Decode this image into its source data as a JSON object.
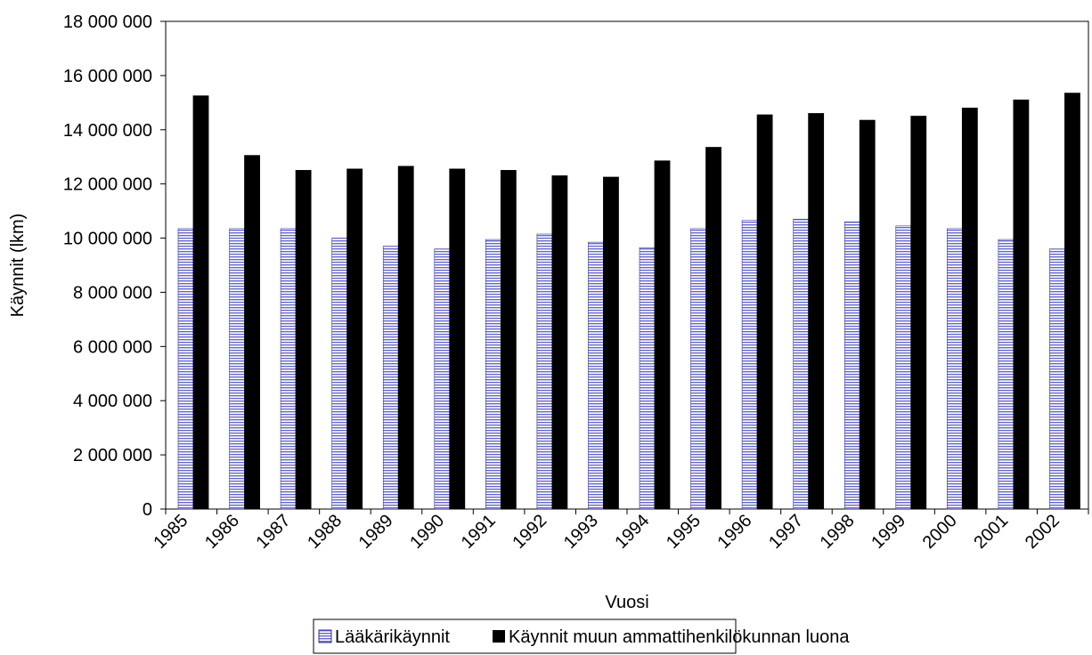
{
  "chart_data": {
    "type": "bar",
    "title": "",
    "xlabel": "Vuosi",
    "ylabel": "Käynnit (lkm)",
    "ylim": [
      0,
      18000000
    ],
    "yticks": [
      0,
      2000000,
      4000000,
      6000000,
      8000000,
      10000000,
      12000000,
      14000000,
      16000000,
      18000000
    ],
    "ytick_labels": [
      "0",
      "2 000 000",
      "4 000 000",
      "6 000 000",
      "8 000 000",
      "10 000 000",
      "12 000 000",
      "14 000 000",
      "16 000 000",
      "18 000 000"
    ],
    "categories": [
      "1985",
      "1986",
      "1987",
      "1988",
      "1989",
      "1990",
      "1991",
      "1992",
      "1993",
      "1994",
      "1995",
      "1996",
      "1997",
      "1998",
      "1999",
      "2000",
      "2001",
      "2002"
    ],
    "series": [
      {
        "name": "Lääkärikäynnit",
        "pattern": "horizontal-lines",
        "color": "#6666cc",
        "values": [
          10350000,
          10350000,
          10350000,
          10000000,
          9700000,
          9600000,
          9950000,
          10150000,
          9850000,
          9650000,
          10350000,
          10650000,
          10700000,
          10600000,
          10450000,
          10350000,
          9950000,
          9600000
        ]
      },
      {
        "name": "Käynnit muun ammattihenkilökunnan luona",
        "pattern": "solid",
        "color": "#000000",
        "values": [
          15250000,
          13050000,
          12500000,
          12550000,
          12650000,
          12550000,
          12500000,
          12300000,
          12250000,
          12850000,
          13350000,
          14550000,
          14600000,
          14350000,
          14500000,
          14800000,
          15100000,
          15350000
        ]
      }
    ],
    "grid": false,
    "legend_position": "bottom"
  }
}
